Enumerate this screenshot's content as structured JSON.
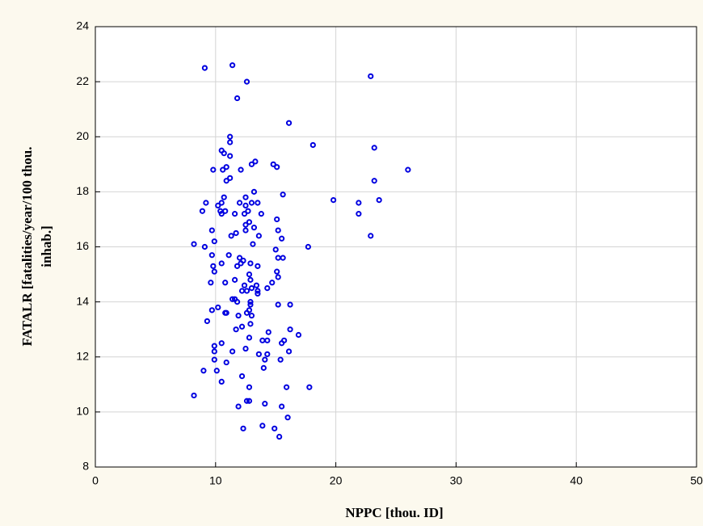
{
  "chart_data": {
    "type": "scatter",
    "xlabel": "NPPC [thou. ID]",
    "ylabel": [
      "FATALR [fatalities/year/100 thou.",
      "inhab.]"
    ],
    "xlim": [
      0,
      50
    ],
    "xticks": [
      0,
      10,
      20,
      30,
      40,
      50
    ],
    "ylim": [
      8,
      24
    ],
    "yticks": [
      8,
      10,
      12,
      14,
      16,
      18,
      20,
      22,
      24
    ],
    "grid": true,
    "series": [
      {
        "color": "#0000e0",
        "x": [
          9.1,
          11.4,
          12.6,
          11.8,
          22.9,
          16.1,
          11.2,
          11.2,
          18.1,
          23.2,
          10.5,
          10.7,
          11.2,
          13.0,
          13.3,
          14.8,
          15.1,
          10.9,
          10.6,
          9.8,
          12.1,
          11.2,
          10.9,
          26.0,
          23.2,
          13.2,
          12.5,
          15.6,
          13.5,
          13.0,
          12.5,
          12.0,
          10.7,
          10.5,
          10.2,
          9.2,
          8.9,
          10.4,
          10.8,
          10.5,
          11.6,
          12.4,
          12.7,
          13.8,
          19.8,
          21.9,
          23.6,
          21.9,
          15.1,
          12.5,
          12.8,
          13.2,
          12.5,
          15.2,
          9.7,
          11.3,
          11.7,
          13.6,
          8.2,
          9.1,
          9.9,
          13.1,
          15.5,
          17.7,
          22.9,
          15.0,
          9.7,
          11.1,
          12.0,
          12.3,
          12.1,
          10.5,
          11.8,
          12.9,
          13.5,
          15.2,
          15.6,
          9.8,
          9.9,
          15.1,
          15.2,
          12.8,
          12.9,
          14.7,
          9.6,
          10.8,
          11.6,
          12.4,
          12.6,
          13.0,
          13.4,
          14.3,
          13.5,
          13.5,
          12.2,
          11.4,
          11.6,
          11.8,
          12.9,
          12.9,
          12.8,
          15.2,
          16.2,
          9.7,
          10.2,
          10.8,
          10.9,
          11.9,
          12.6,
          13.0,
          9.3,
          12.9,
          12.2,
          11.7,
          14.4,
          16.2,
          16.9,
          12.8,
          13.9,
          14.3,
          15.7,
          15.5,
          10.5,
          9.9,
          9.9,
          11.4,
          12.5,
          13.6,
          14.3,
          14.1,
          15.4,
          16.1,
          9.9,
          10.9,
          14.0,
          9.0,
          10.1,
          12.2,
          10.5,
          12.8,
          15.9,
          17.8,
          8.2,
          12.6,
          12.8,
          11.9,
          14.1,
          15.5,
          13.9,
          12.3,
          14.9,
          15.3,
          16.0
        ],
        "values": [
          22.5,
          22.6,
          22.0,
          21.4,
          22.2,
          20.5,
          20.0,
          19.8,
          19.7,
          19.6,
          19.5,
          19.4,
          19.3,
          19.0,
          19.1,
          19.0,
          18.9,
          18.9,
          18.8,
          18.8,
          18.8,
          18.5,
          18.4,
          18.8,
          18.4,
          18.0,
          17.8,
          17.9,
          17.6,
          17.6,
          17.5,
          17.6,
          17.8,
          17.6,
          17.5,
          17.6,
          17.3,
          17.3,
          17.3,
          17.2,
          17.2,
          17.2,
          17.3,
          17.2,
          17.7,
          17.6,
          17.7,
          17.2,
          17.0,
          16.8,
          16.9,
          16.7,
          16.6,
          16.6,
          16.6,
          16.4,
          16.5,
          16.4,
          16.1,
          16.0,
          16.2,
          16.1,
          16.3,
          16.0,
          16.4,
          15.9,
          15.7,
          15.7,
          15.6,
          15.5,
          15.4,
          15.4,
          15.3,
          15.4,
          15.3,
          15.6,
          15.6,
          15.3,
          15.1,
          15.1,
          14.9,
          15.0,
          14.8,
          14.7,
          14.7,
          14.7,
          14.8,
          14.6,
          14.4,
          14.5,
          14.6,
          14.5,
          14.3,
          14.4,
          14.4,
          14.1,
          14.1,
          14.0,
          14.0,
          13.9,
          13.7,
          13.9,
          13.9,
          13.7,
          13.8,
          13.6,
          13.6,
          13.5,
          13.6,
          13.5,
          13.3,
          13.2,
          13.1,
          13.0,
          12.9,
          13.0,
          12.8,
          12.7,
          12.6,
          12.6,
          12.6,
          12.5,
          12.5,
          12.4,
          12.2,
          12.2,
          12.3,
          12.1,
          12.1,
          11.9,
          11.9,
          12.2,
          11.9,
          11.8,
          11.6,
          11.5,
          11.5,
          11.3,
          11.1,
          10.9,
          10.9,
          10.9,
          10.6,
          10.4,
          10.4,
          10.2,
          10.3,
          10.2,
          9.5,
          9.4,
          9.4,
          9.1,
          9.8
        ]
      }
    ]
  }
}
